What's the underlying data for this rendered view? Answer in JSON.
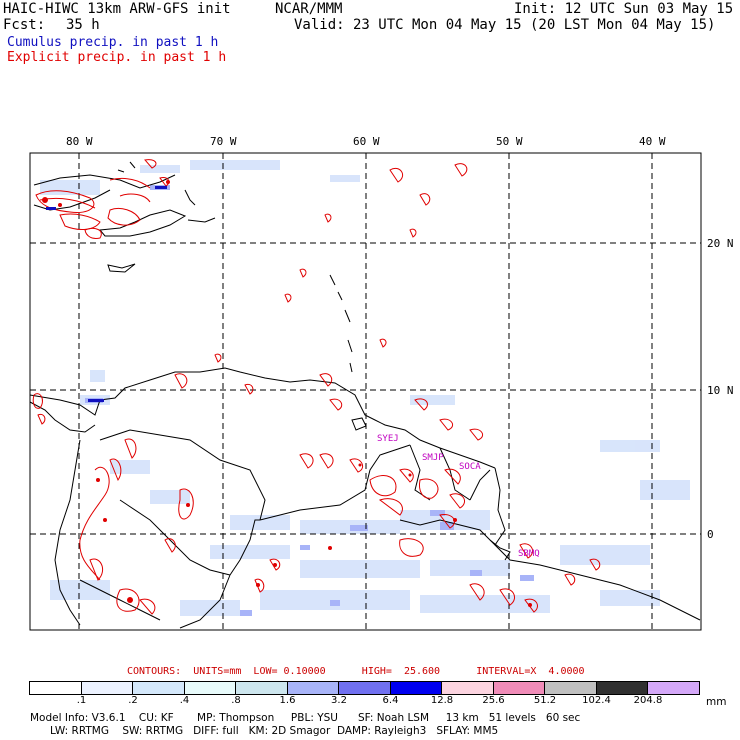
{
  "header": {
    "model": "HAIC-HIWC 13km ARW-GFS init",
    "org": "NCAR/MMM",
    "fcst_label": "Fcst:",
    "fcst_value": "35 h",
    "init": "Init: 12 UTC Sun 03 May 15",
    "valid": "Valid: 23 UTC Mon 04 May 15 (20 LST Mon 04 May 15)",
    "field1": "Cumulus precip. in past 1 h",
    "field2": "Explicit precip. in past 1 h",
    "field1_color": "#1010c0",
    "field2_color": "#e00000"
  },
  "map": {
    "lon_labels": [
      "80 W",
      "70 W",
      "60 W",
      "50 W",
      "40 W"
    ],
    "lat_labels": [
      "20 N",
      "10 N",
      "0"
    ],
    "station_labels": [
      "SYEJ",
      "SMJP",
      "SOCA",
      "SBMQ"
    ],
    "station_color": "#c000c0"
  },
  "legend": {
    "contours": "CONTOURS:  UNITS=mm  LOW= 0.10000      HIGH=  25.600      INTERVAL=X  4.0000",
    "unit": "mm",
    "ticks": [
      ".1",
      ".2",
      ".4",
      ".8",
      "1.6",
      "3.2",
      "6.4",
      "12.8",
      "25.6",
      "51.2",
      "102.4",
      "204.8"
    ],
    "colors": [
      "#ffffff",
      "#ecf2ff",
      "#d4e8fb",
      "#e8fbfb",
      "#cde6ee",
      "#a8b4f8",
      "#7070f0",
      "#0000f0",
      "#fcd4e0",
      "#f08cb8",
      "#c0c0c0",
      "#303030",
      "#d4a8f8"
    ]
  },
  "footer": {
    "line1": "Model Info: V3.6.1    CU: KF       MP: Thompson     PBL: YSU      SF: Noah LSM     13 km   51 levels   60 sec",
    "line2": "      LW: RRTMG    SW: RRTMG   DIFF: full   KM: 2D Smagor  DAMP: Rayleigh3   SFLAY: MM5"
  }
}
